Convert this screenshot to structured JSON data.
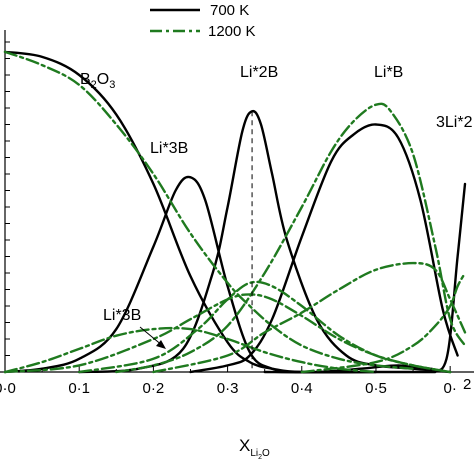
{
  "chart_data": {
    "type": "line",
    "xlabel_main": "X",
    "xlabel_sub": "Li",
    "xlabel_sub2": "2",
    "xlabel_sub3": "O",
    "xlim": [
      0.0,
      0.62
    ],
    "ylim": [
      0,
      1.0
    ],
    "x_ticks": [
      0.0,
      0.1,
      0.2,
      0.3,
      0.4,
      0.5,
      0.6
    ],
    "x_tick_labels": [
      "0·0",
      "0·1",
      "0·2",
      "0·3",
      "0·4",
      "0·5",
      "0·"
    ],
    "legend": {
      "placement": "top-center",
      "entries": [
        {
          "label": "700 K",
          "color": "#000000",
          "dash": "solid"
        },
        {
          "label": "1200 K",
          "color": "#1f7a1f",
          "dash": "dashdot"
        }
      ]
    },
    "annotations": [
      {
        "id": "b2o3",
        "text_main": "B",
        "sub1": "2",
        "text_mid": "O",
        "sub2": "3",
        "x": 0.095,
        "y": 0.9
      },
      {
        "id": "li3b-upper",
        "text": "Li*3B",
        "x": 0.225,
        "y": 0.69
      },
      {
        "id": "li2b",
        "text": "Li*2B",
        "x": 0.333,
        "y": 0.91
      },
      {
        "id": "lib",
        "text": "Li*B",
        "x": 0.508,
        "y": 0.91
      },
      {
        "id": "3li2b",
        "text": "3Li*2",
        "x": 0.595,
        "y": 0.78
      },
      {
        "id": "li3b-lower",
        "text": "Li*3B",
        "x": 0.14,
        "y": 0.21
      },
      {
        "id": "edge-2",
        "text": "2",
        "x": 0.615,
        "y": 0.035
      }
    ],
    "vline_x": 0.333,
    "series": [
      {
        "temp": "700 K",
        "style": "solid",
        "color": "#000000",
        "x": [
          0.0,
          0.05,
          0.1,
          0.15,
          0.2,
          0.25,
          0.3,
          0.33,
          0.36,
          0.4,
          0.5,
          0.58
        ],
        "y": [
          0.97,
          0.955,
          0.9,
          0.78,
          0.57,
          0.29,
          0.09,
          0.03,
          0.01,
          0.0,
          0.0,
          0.0
        ]
      },
      {
        "temp": "700 K",
        "style": "solid",
        "color": "#000000",
        "x": [
          0.0,
          0.05,
          0.1,
          0.15,
          0.2,
          0.23,
          0.25,
          0.27,
          0.3,
          0.33,
          0.36,
          0.4,
          0.5
        ],
        "y": [
          0.0,
          0.01,
          0.04,
          0.13,
          0.38,
          0.55,
          0.59,
          0.52,
          0.26,
          0.06,
          0.01,
          0.0,
          0.0
        ]
      },
      {
        "temp": "700 K",
        "style": "solid",
        "color": "#000000",
        "x": [
          0.1,
          0.18,
          0.24,
          0.28,
          0.3,
          0.32,
          0.333,
          0.345,
          0.36,
          0.38,
          0.42,
          0.46,
          0.5,
          0.55,
          0.6
        ],
        "y": [
          0.0,
          0.01,
          0.07,
          0.3,
          0.5,
          0.73,
          0.79,
          0.75,
          0.6,
          0.4,
          0.16,
          0.05,
          0.02,
          0.01,
          0.0
        ]
      },
      {
        "temp": "700 K",
        "style": "solid",
        "color": "#000000",
        "x": [
          0.25,
          0.3,
          0.33,
          0.36,
          0.4,
          0.44,
          0.47,
          0.5,
          0.53,
          0.56,
          0.59,
          0.61
        ],
        "y": [
          0.0,
          0.02,
          0.05,
          0.16,
          0.41,
          0.64,
          0.72,
          0.75,
          0.71,
          0.52,
          0.19,
          0.05
        ]
      },
      {
        "temp": "700 K",
        "style": "solid",
        "color": "#000000",
        "x": [
          0.35,
          0.42,
          0.48,
          0.53,
          0.57,
          0.595,
          0.61,
          0.62
        ],
        "y": [
          0.0,
          0.0,
          0.01,
          0.02,
          0.01,
          0.04,
          0.35,
          0.57
        ]
      },
      {
        "temp": "1200 K",
        "style": "dashdot",
        "color": "#1f7a1f",
        "x": [
          0.0,
          0.05,
          0.1,
          0.15,
          0.2,
          0.25,
          0.3,
          0.33,
          0.36,
          0.4,
          0.45,
          0.5,
          0.55
        ],
        "y": [
          0.97,
          0.93,
          0.87,
          0.75,
          0.6,
          0.42,
          0.27,
          0.2,
          0.14,
          0.08,
          0.04,
          0.02,
          0.01
        ]
      },
      {
        "temp": "1200 K",
        "style": "dashdot",
        "color": "#1f7a1f",
        "x": [
          0.0,
          0.05,
          0.1,
          0.15,
          0.2,
          0.25,
          0.3,
          0.35,
          0.4,
          0.45,
          0.5
        ],
        "y": [
          0.0,
          0.03,
          0.07,
          0.11,
          0.13,
          0.13,
          0.1,
          0.06,
          0.03,
          0.01,
          0.0
        ]
      },
      {
        "temp": "1200 K",
        "style": "dashdot",
        "color": "#1f7a1f",
        "x": [
          0.0,
          0.1,
          0.2,
          0.25,
          0.3,
          0.33,
          0.36,
          0.4,
          0.45,
          0.5,
          0.55,
          0.6
        ],
        "y": [
          0.0,
          0.02,
          0.1,
          0.16,
          0.22,
          0.235,
          0.22,
          0.17,
          0.1,
          0.05,
          0.02,
          0.0
        ]
      },
      {
        "temp": "1200 K",
        "style": "dashdot",
        "color": "#1f7a1f",
        "x": [
          0.1,
          0.2,
          0.26,
          0.3,
          0.33,
          0.36,
          0.4,
          0.45,
          0.5,
          0.55,
          0.6
        ],
        "y": [
          0.0,
          0.04,
          0.13,
          0.22,
          0.27,
          0.26,
          0.2,
          0.11,
          0.05,
          0.02,
          0.0
        ]
      },
      {
        "temp": "1200 K",
        "style": "dashdot",
        "color": "#1f7a1f",
        "x": [
          0.2,
          0.3,
          0.35,
          0.4,
          0.45,
          0.5,
          0.55,
          0.58,
          0.6,
          0.62
        ],
        "y": [
          0.0,
          0.05,
          0.12,
          0.18,
          0.25,
          0.31,
          0.33,
          0.31,
          0.22,
          0.12
        ]
      },
      {
        "temp": "1200 K",
        "style": "dashdot",
        "color": "#1f7a1f",
        "x": [
          0.15,
          0.2,
          0.25,
          0.3,
          0.35,
          0.4,
          0.44,
          0.47,
          0.5,
          0.52,
          0.55,
          0.58,
          0.6,
          0.62
        ],
        "y": [
          0.0,
          0.02,
          0.06,
          0.14,
          0.3,
          0.5,
          0.67,
          0.76,
          0.81,
          0.79,
          0.66,
          0.38,
          0.16,
          0.08
        ]
      },
      {
        "temp": "1200 K",
        "style": "dashdot",
        "color": "#1f7a1f",
        "x": [
          0.4,
          0.5,
          0.55,
          0.58,
          0.6,
          0.61,
          0.62
        ],
        "y": [
          0.0,
          0.03,
          0.08,
          0.14,
          0.2,
          0.26,
          0.3
        ]
      }
    ]
  }
}
